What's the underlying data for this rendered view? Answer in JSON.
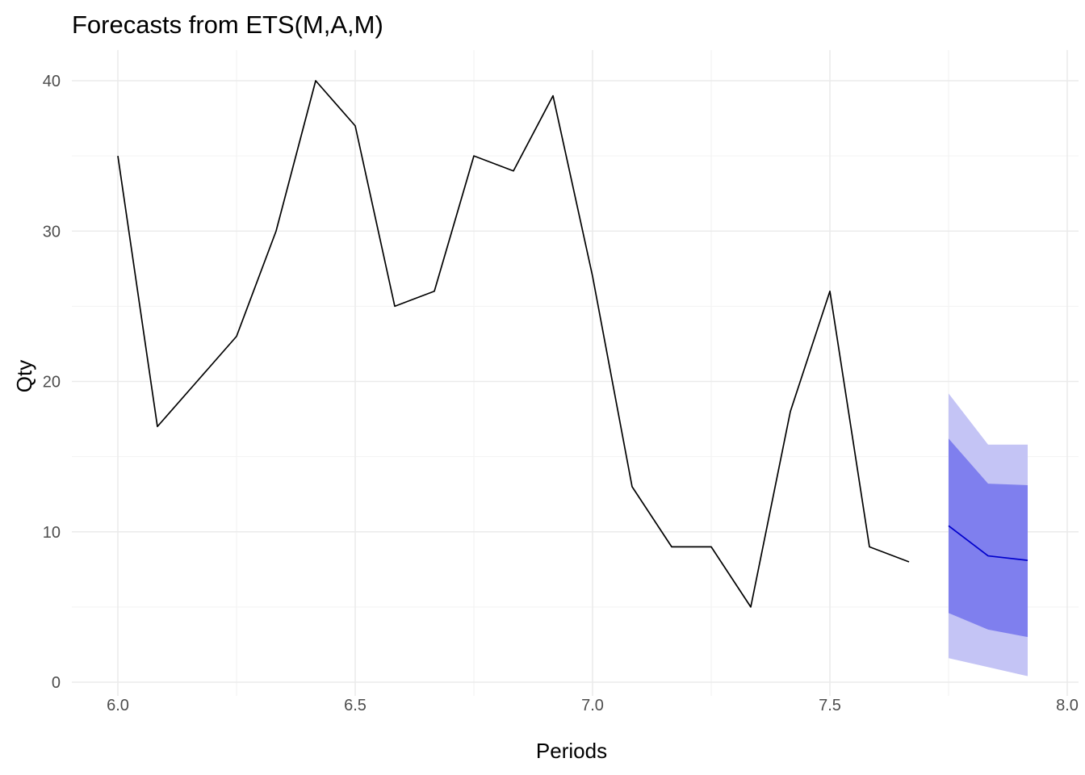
{
  "chart_data": {
    "type": "line",
    "title": "Forecasts from ETS(M,A,M)",
    "xlabel": "Periods",
    "ylabel": "Qty",
    "xlim": [
      5.9,
      8.0
    ],
    "ylim": [
      -1,
      42
    ],
    "x_ticks": [
      6.0,
      6.5,
      7.0,
      7.5,
      8.0
    ],
    "x_tick_labels": [
      "6.0",
      "6.5",
      "7.0",
      "7.5",
      "8.0"
    ],
    "y_ticks": [
      0,
      10,
      20,
      30,
      40
    ],
    "y_tick_labels": [
      "0",
      "10",
      "20",
      "30",
      "40"
    ],
    "grid": true,
    "legend": "none",
    "series": [
      {
        "role": "observed",
        "color": "#000000",
        "x": [
          6.0,
          6.0833,
          6.1667,
          6.25,
          6.3333,
          6.4167,
          6.5,
          6.5833,
          6.6667,
          6.75,
          6.8333,
          6.9167,
          7.0,
          7.0833,
          7.1667,
          7.25,
          7.3333,
          7.4167,
          7.5,
          7.5833,
          7.6667
        ],
        "y": [
          35,
          17,
          20,
          23,
          30,
          40,
          37,
          25,
          26,
          35,
          34,
          39,
          27,
          13,
          9,
          9,
          5,
          18,
          26,
          9,
          8
        ]
      },
      {
        "role": "forecast",
        "color": "#0000cc",
        "x": [
          7.75,
          7.8333,
          7.9167
        ],
        "y": [
          10.4,
          8.4,
          8.1
        ]
      }
    ],
    "intervals": [
      {
        "level": 95,
        "color": "#c4c4f5",
        "x": [
          7.75,
          7.8333,
          7.9167
        ],
        "lower": [
          1.6,
          1.0,
          0.4
        ],
        "upper": [
          19.2,
          15.8,
          15.8
        ]
      },
      {
        "level": 80,
        "color": "#7f7fee",
        "x": [
          7.75,
          7.8333,
          7.9167
        ],
        "lower": [
          4.6,
          3.5,
          3.0
        ],
        "upper": [
          16.2,
          13.2,
          13.1
        ]
      }
    ]
  }
}
